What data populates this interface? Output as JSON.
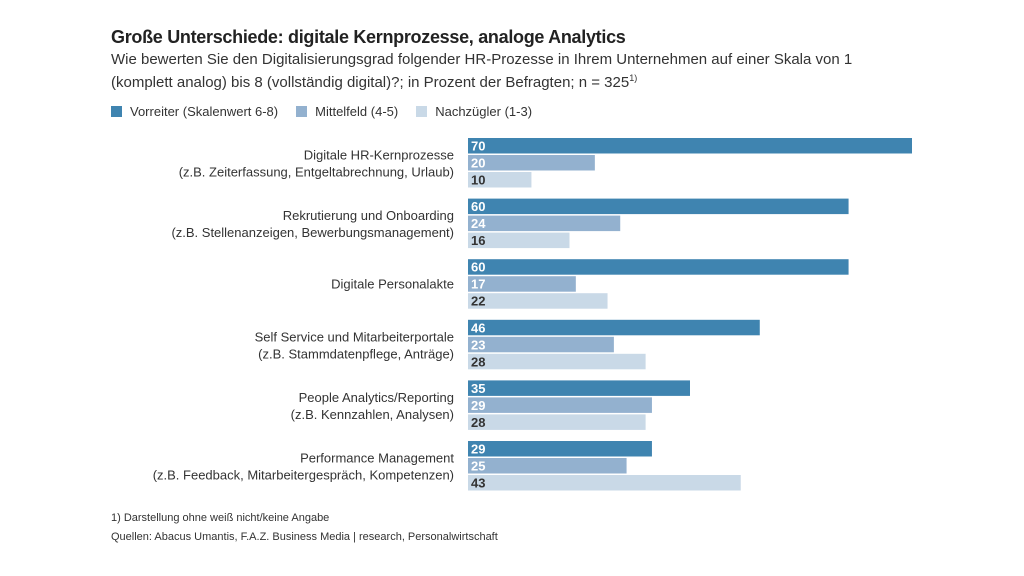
{
  "chart_data": {
    "type": "bar",
    "orientation": "horizontal",
    "title": "Große Unterschiede: digitale Kernprozesse, analoge Analytics",
    "subtitle": "Wie bewerten Sie den Digitalisierungsgrad folgender HR-Prozesse in Ihrem Unternehmen auf einer Skala von 1 (komplett analog) bis 8 (vollständig digital)?; in Prozent der Befragten; n = 325",
    "subtitle_note": "1)",
    "categories": [
      {
        "label": "Digitale HR-Kernprozesse",
        "sublabel": "(z.B. Zeiterfassung, Entgeltabrechnung, Urlaub)"
      },
      {
        "label": "Rekrutierung und Onboarding",
        "sublabel": "(z.B. Stellenanzeigen, Bewerbungsmanagement)"
      },
      {
        "label": "Digitale Personalakte",
        "sublabel": ""
      },
      {
        "label": "Self Service und Mitarbeiterportale",
        "sublabel": "(z.B. Stammdatenpflege, Anträge)"
      },
      {
        "label": "People Analytics/Reporting",
        "sublabel": "(z.B. Kennzahlen, Analysen)"
      },
      {
        "label": "Performance Management",
        "sublabel": "(z.B. Feedback, Mitarbeitergespräch, Kompetenzen)"
      }
    ],
    "series": [
      {
        "name": "Vorreiter (Skalenwert 6-8)",
        "color": "#3f84b0",
        "label_color": "#ffffff",
        "values": [
          70,
          60,
          60,
          46,
          35,
          29
        ]
      },
      {
        "name": "Mittelfeld (4-5)",
        "color": "#93b1cf",
        "label_color": "#ffffff",
        "values": [
          20,
          24,
          17,
          23,
          29,
          25
        ]
      },
      {
        "name": "Nachzügler (1-3)",
        "color": "#c9d9e7",
        "label_color": "#333333",
        "values": [
          10,
          16,
          22,
          28,
          28,
          43
        ]
      }
    ],
    "xlim": [
      0,
      70
    ],
    "grid": false,
    "legend": "top-left",
    "footnote": "1)   Darstellung ohne weiß nicht/keine Angabe",
    "source": "Quellen: Abacus Umantis, F.A.Z. Business Media | research, Personalwirtschaft"
  }
}
